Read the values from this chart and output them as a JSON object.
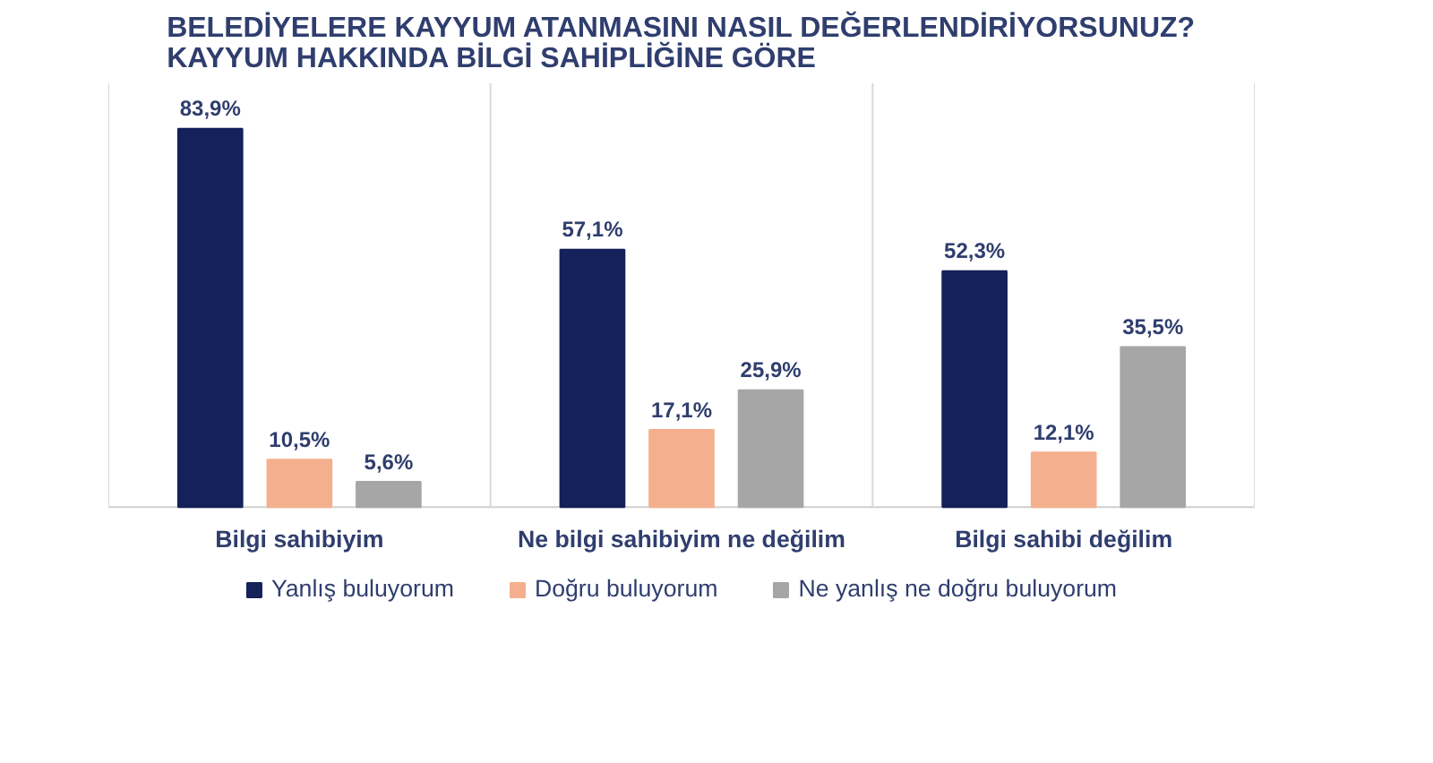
{
  "chart_data": {
    "type": "bar",
    "title": "BELEDİYELERE KAYYUM ATANMASINI NASIL DEĞERLENDİRİYORSUNUZ?\nKAYYUM HAKKINDA BİLGİ SAHİPLİĞİNE GÖRE",
    "categories": [
      "Bilgi sahibiyim",
      "Ne bilgi sahibiyim ne değilim",
      "Bilgi sahibi değilim"
    ],
    "series": [
      {
        "name": "Yanlış buluyorum",
        "color": "#14215a",
        "values": [
          83.9,
          57.1,
          52.3
        ],
        "value_labels": [
          "83,9%",
          "57,1%",
          "52,3%"
        ]
      },
      {
        "name": "Doğru buluyorum",
        "color": "#f4b08e",
        "values": [
          10.5,
          17.1,
          12.1
        ],
        "value_labels": [
          "10,5%",
          "17,1%",
          "12,1%"
        ]
      },
      {
        "name": "Ne yanlış ne doğru buluyorum",
        "color": "#a6a6a6",
        "values": [
          5.6,
          25.9,
          35.5
        ],
        "value_labels": [
          "5,6%",
          "25,9%",
          "35,5%"
        ]
      }
    ],
    "legend": "bottom",
    "grid": false
  }
}
